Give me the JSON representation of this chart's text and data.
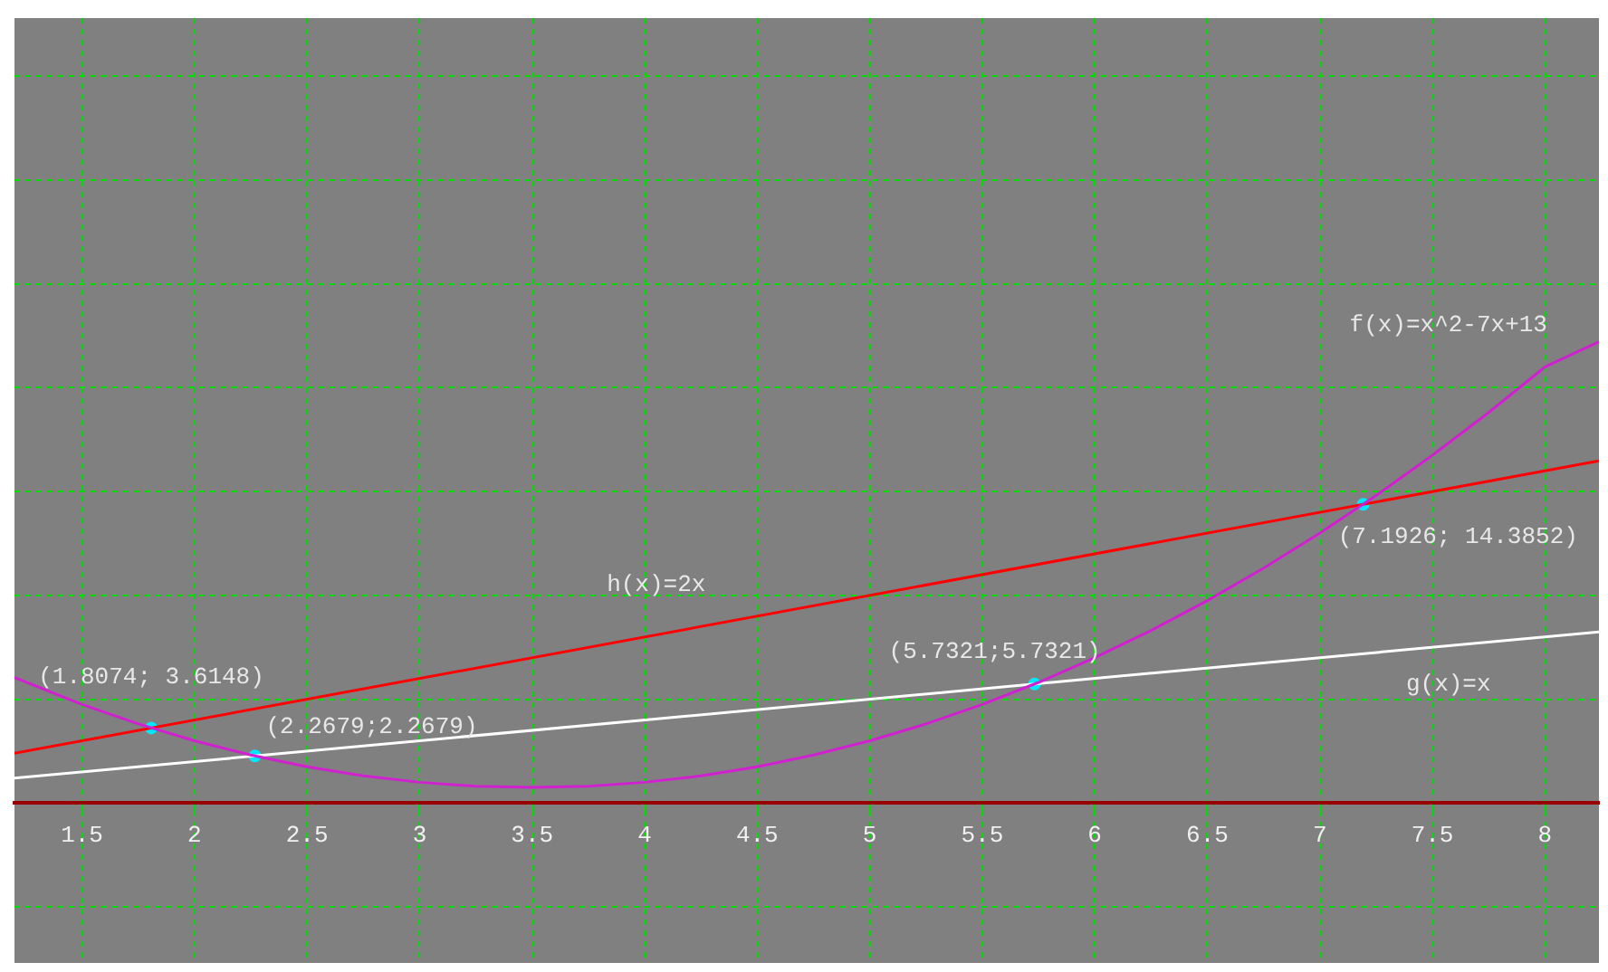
{
  "chart_data": {
    "type": "line",
    "xlim": [
      1.2,
      8.24
    ],
    "ylim": [
      -7.7,
      37.8
    ],
    "xticks": [
      1.5,
      2,
      2.5,
      3,
      3.5,
      4,
      4.5,
      5,
      5.5,
      6,
      6.5,
      7,
      7.5,
      8
    ],
    "yticks": [
      {
        "value": -5,
        "label": null
      },
      {
        "value": 0,
        "label": null
      },
      {
        "value": 5,
        "label": null
      },
      {
        "value": 10,
        "label": null
      },
      {
        "value": 15,
        "label": null
      },
      {
        "value": 20,
        "label": null
      },
      {
        "value": 25,
        "label": null
      },
      {
        "value": 30,
        "label": null
      },
      {
        "value": 35,
        "label": null
      }
    ],
    "tick_labels": "x",
    "grid": true,
    "legend": false,
    "line_style": "solid",
    "series": [
      {
        "color": "#d020d0",
        "x": [
          1.2,
          1.5,
          1.75,
          2,
          2.25,
          2.5,
          2.75,
          3,
          3.25,
          3.5,
          3.75,
          4,
          4.25,
          4.5,
          4.75,
          5,
          5.25,
          5.5,
          5.75,
          6,
          6.25,
          6.5,
          6.75,
          7,
          7.25,
          7.5,
          7.75,
          8,
          8.24
        ],
        "values": [
          6.04,
          4.75,
          3.81,
          3,
          2.31,
          1.75,
          1.31,
          1,
          0.81,
          0.75,
          0.81,
          1,
          1.31,
          1.75,
          2.31,
          3,
          3.81,
          4.75,
          5.81,
          7,
          8.31,
          9.75,
          11.31,
          13,
          14.81,
          16.75,
          18.81,
          21,
          22.22
        ]
      },
      {
        "color": "#ffffff",
        "x": [
          1.2,
          8.24
        ],
        "values": [
          1.2,
          8.24
        ]
      },
      {
        "color": "#ff0000",
        "x": [
          1.2,
          8.24
        ],
        "values": [
          2.4,
          16.48
        ]
      },
      {
        "type": "scatter",
        "color": "#00e8ff",
        "x": [
          1.8074,
          2.2679,
          5.7321,
          7.1926
        ],
        "values": [
          3.6148,
          2.2679,
          5.7321,
          14.3852
        ],
        "value_labels": [
          "(1.8074; 3.6148)",
          "(2.2679;2.2679)",
          "(5.7321;5.7321)",
          "(7.1926; 14.3852)"
        ]
      }
    ],
    "annotations": [
      "f(x)=x^2-7x+13",
      "h(x)=2x",
      "g(x)=x"
    ]
  }
}
